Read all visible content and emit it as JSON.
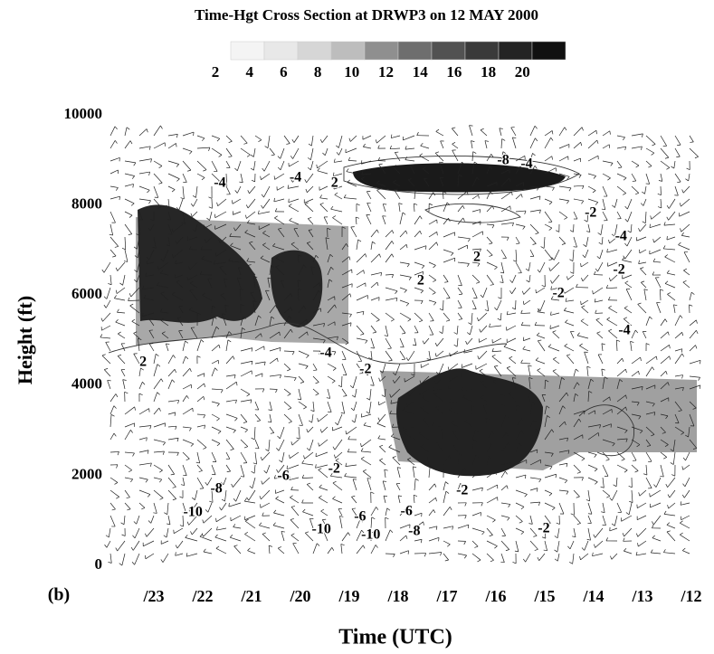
{
  "chart_data": {
    "type": "cross-section",
    "title": "Time-Hgt Cross Section at DRWP3 on 12 MAY 2000",
    "colorbar": {
      "ticks": [
        2,
        4,
        6,
        8,
        10,
        12,
        14,
        16,
        18,
        20
      ],
      "colors": [
        "#f4f4f4",
        "#e8e8e8",
        "#d6d6d6",
        "#bdbdbd",
        "#8f8f8f",
        "#6e6e6e",
        "#525252",
        "#3a3a3a",
        "#242424",
        "#111111"
      ]
    },
    "panel_label": "(b)",
    "ylabel": "Height (ft)",
    "xlabel": "Time (UTC)",
    "categories": [
      "/23",
      "/22",
      "/21",
      "/20",
      "/19",
      "/18",
      "/17",
      "/16",
      "/15",
      "/14",
      "/13",
      "/12"
    ],
    "ylim": [
      0,
      10000
    ],
    "yticks": [
      0,
      2000,
      4000,
      6000,
      8000,
      10000
    ],
    "contour_labels": [
      {
        "value": -4,
        "time": 1.35,
        "height": 8480
      },
      {
        "value": -4,
        "time": 2.9,
        "height": 8600
      },
      {
        "value": 2,
        "time": 3.7,
        "height": 8480
      },
      {
        "value": -8,
        "time": 7.15,
        "height": 8980
      },
      {
        "value": -4,
        "time": 7.63,
        "height": 8900
      },
      {
        "value": -2,
        "time": 8.94,
        "height": 7810
      },
      {
        "value": -4,
        "time": 9.56,
        "height": 7290
      },
      {
        "value": -2,
        "time": 9.52,
        "height": 6550
      },
      {
        "value": 2,
        "time": 6.61,
        "height": 6830
      },
      {
        "value": 2,
        "time": 5.46,
        "height": 6310
      },
      {
        "value": -2,
        "time": 8.28,
        "height": 6030
      },
      {
        "value": -4,
        "time": 9.63,
        "height": 5200
      },
      {
        "value": 2,
        "time": -0.22,
        "height": 4500
      },
      {
        "value": -4,
        "time": 3.52,
        "height": 4700
      },
      {
        "value": -2,
        "time": 4.33,
        "height": 4340
      },
      {
        "value": -6,
        "time": 2.65,
        "height": 1970
      },
      {
        "value": -8,
        "time": 1.28,
        "height": 1690
      },
      {
        "value": -10,
        "time": 0.8,
        "height": 1170
      },
      {
        "value": -2,
        "time": 3.69,
        "height": 2130
      },
      {
        "value": -2,
        "time": 6.31,
        "height": 1650
      },
      {
        "value": -10,
        "time": 3.43,
        "height": 790
      },
      {
        "value": -6,
        "time": 4.22,
        "height": 1070
      },
      {
        "value": -10,
        "time": 4.44,
        "height": 670
      },
      {
        "value": -6,
        "time": 5.17,
        "height": 1190
      },
      {
        "value": -8,
        "time": 5.33,
        "height": 750
      },
      {
        "value": -2,
        "time": 7.98,
        "height": 810
      }
    ]
  }
}
